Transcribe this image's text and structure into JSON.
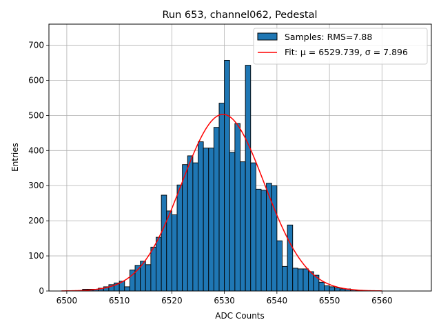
{
  "chart_data": {
    "type": "bar",
    "title": "Run 653, channel062, Pedestal",
    "xlabel": "ADC Counts",
    "ylabel": "Entries",
    "xlim": [
      6496.6,
      6569.4
    ],
    "ylim": [
      0,
      760
    ],
    "xticks": [
      6500,
      6510,
      6520,
      6530,
      6540,
      6550,
      6560
    ],
    "yticks": [
      0,
      100,
      200,
      300,
      400,
      500,
      600,
      700
    ],
    "grid": true,
    "legend_position": "top-right",
    "bin_width": 1,
    "bin_start": 6499,
    "series": [
      {
        "name": "Samples: RMS=7.88",
        "kind": "histogram",
        "color": "#1f77b4",
        "values": [
          0,
          0,
          0,
          0,
          5,
          5,
          5,
          8,
          12,
          18,
          23,
          28,
          12,
          60,
          73,
          85,
          75,
          125,
          153,
          273,
          228,
          217,
          302,
          360,
          385,
          365,
          425,
          407,
          407,
          466,
          535,
          657,
          395,
          477,
          368,
          643,
          365,
          290,
          287,
          307,
          300,
          143,
          70,
          188,
          65,
          63,
          63,
          55,
          45,
          25,
          15,
          12,
          9,
          6,
          6,
          3,
          2,
          1,
          1,
          1,
          0,
          0
        ]
      },
      {
        "name": "Fit: μ = 6529.739, σ = 7.896",
        "kind": "gaussian_fit",
        "color": "#ff0000",
        "mu": 6529.739,
        "sigma": 7.896,
        "amplitude": 503,
        "range": [
          6499,
          6560
        ]
      }
    ]
  }
}
